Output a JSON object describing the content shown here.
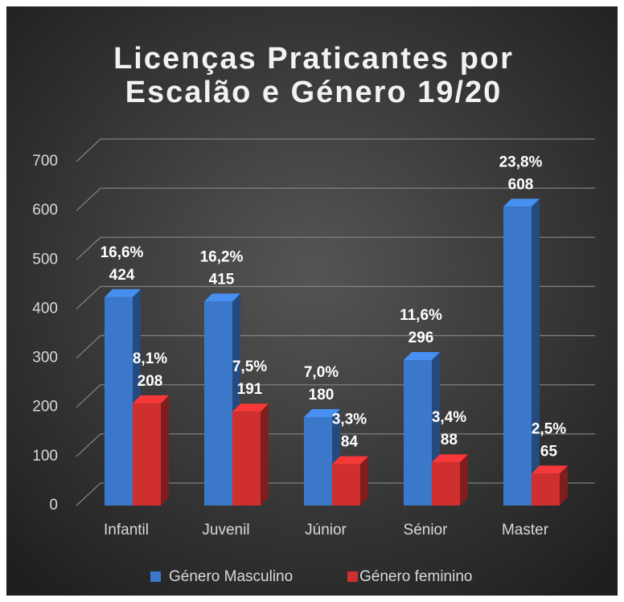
{
  "chart_data": {
    "type": "bar3d",
    "title": [
      "Licenças Praticantes por",
      "Escalão e Género 19/20"
    ],
    "categories": [
      "Infantil",
      "Juvenil",
      "Júnior",
      "Sénior",
      "Master"
    ],
    "series": [
      {
        "name": "Género Masculino",
        "color": "#3b78c9",
        "values": [
          424,
          415,
          180,
          296,
          608
        ],
        "share_labels": [
          "16,6%",
          "16,2%",
          "7,0%",
          "11,6%",
          "23,8%"
        ]
      },
      {
        "name": "Género feminino",
        "color": "#cf2f2f",
        "values": [
          208,
          191,
          84,
          88,
          65
        ],
        "share_labels": [
          "8,1%",
          "7,5%",
          "3,3%",
          "3,4%",
          "2,5%"
        ]
      }
    ],
    "ylim": [
      0,
      700
    ],
    "yticks": [
      0,
      100,
      200,
      300,
      400,
      500,
      600,
      700
    ],
    "grid": true,
    "legend": "bottom"
  }
}
